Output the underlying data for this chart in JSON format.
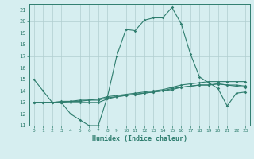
{
  "xlabel": "Humidex (Indice chaleur)",
  "ylabel": "",
  "x": [
    0,
    1,
    2,
    3,
    4,
    5,
    6,
    7,
    8,
    9,
    10,
    11,
    12,
    13,
    14,
    15,
    16,
    17,
    18,
    19,
    20,
    21,
    22,
    23
  ],
  "line1": [
    15,
    14,
    13,
    13,
    12,
    11.5,
    11,
    11,
    13.5,
    17,
    19.3,
    19.2,
    20.1,
    20.3,
    20.3,
    21.2,
    19.8,
    17.2,
    15.2,
    14.7,
    14.2,
    12.7,
    13.8,
    13.9
  ],
  "line2": [
    13,
    13,
    13,
    13.1,
    13.1,
    13.2,
    13.2,
    13.3,
    13.5,
    13.6,
    13.7,
    13.8,
    13.9,
    14.0,
    14.1,
    14.3,
    14.5,
    14.6,
    14.7,
    14.8,
    14.8,
    14.8,
    14.8,
    14.8
  ],
  "line3": [
    13,
    13,
    13,
    13.0,
    13.1,
    13.1,
    13.2,
    13.2,
    13.4,
    13.5,
    13.6,
    13.7,
    13.8,
    13.9,
    14.0,
    14.2,
    14.3,
    14.4,
    14.5,
    14.5,
    14.6,
    14.5,
    14.5,
    14.4
  ],
  "line4": [
    13,
    13,
    13,
    13,
    13,
    13,
    13,
    13,
    13.3,
    13.5,
    13.6,
    13.7,
    13.8,
    13.9,
    14.0,
    14.1,
    14.3,
    14.4,
    14.5,
    14.5,
    14.6,
    14.5,
    14.4,
    14.3
  ],
  "line_color": "#2e7d6e",
  "bg_color": "#d6eef0",
  "grid_color": "#b0cdd0",
  "ylim": [
    11,
    21.5
  ],
  "xlim": [
    -0.5,
    23.5
  ],
  "yticks": [
    11,
    12,
    13,
    14,
    15,
    16,
    17,
    18,
    19,
    20,
    21
  ],
  "xticks": [
    0,
    1,
    2,
    3,
    4,
    5,
    6,
    7,
    8,
    9,
    10,
    11,
    12,
    13,
    14,
    15,
    16,
    17,
    18,
    19,
    20,
    21,
    22,
    23
  ]
}
